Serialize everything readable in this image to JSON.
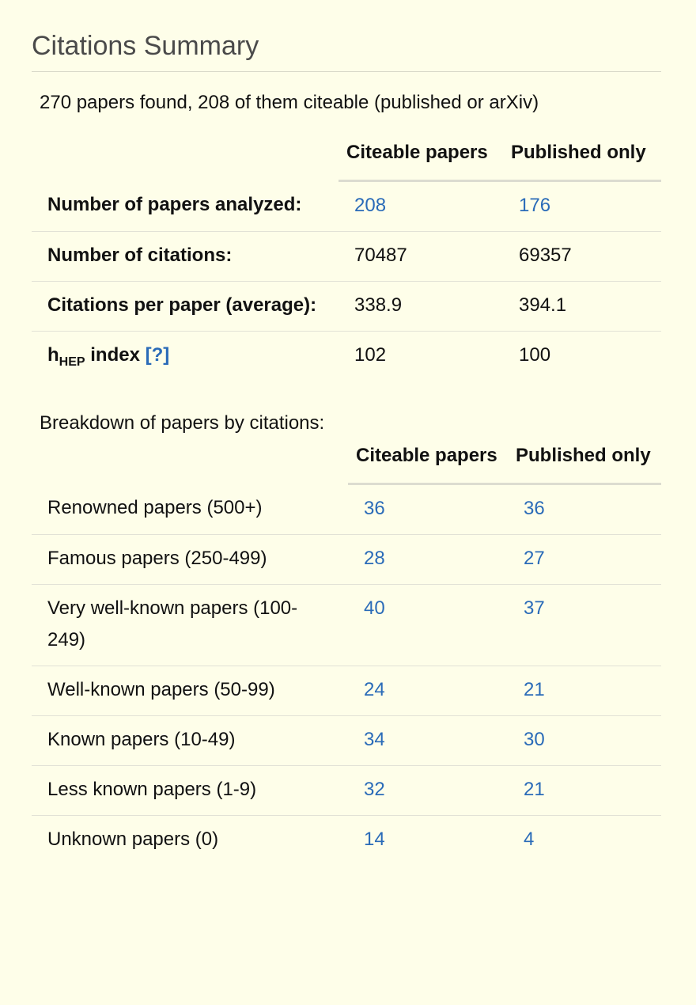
{
  "panel": {
    "title": "Citations Summary",
    "summary": "270 papers found, 208 of them citeable (published or arXiv)"
  },
  "summary_table": {
    "headers": [
      "Citeable papers",
      "Published only"
    ],
    "rows": [
      {
        "label": "Number of papers analyzed:",
        "citeable": "208",
        "published": "176",
        "linked": true
      },
      {
        "label": "Number of citations:",
        "citeable": "70487",
        "published": "69357",
        "linked": false
      },
      {
        "label": "Citations per paper (average):",
        "citeable": "338.9",
        "published": "394.1",
        "linked": false
      }
    ],
    "hindex": {
      "label_main": "h",
      "label_sub": "HEP",
      "label_rest": " index ",
      "help": "[?]",
      "citeable": "102",
      "published": "100"
    }
  },
  "breakdown": {
    "title": "Breakdown of papers by citations:",
    "headers": [
      "Citeable papers",
      "Published only"
    ],
    "rows": [
      {
        "label": "Renowned papers (500+)",
        "citeable": "36",
        "published": "36"
      },
      {
        "label": "Famous papers (250-499)",
        "citeable": "28",
        "published": "27"
      },
      {
        "label": "Very well-known papers (100-249)",
        "citeable": "40",
        "published": "37"
      },
      {
        "label": "Well-known papers (50-99)",
        "citeable": "24",
        "published": "21"
      },
      {
        "label": "Known papers (10-49)",
        "citeable": "34",
        "published": "30"
      },
      {
        "label": "Less known papers (1-9)",
        "citeable": "32",
        "published": "21"
      },
      {
        "label": "Unknown papers (0)",
        "citeable": "14",
        "published": "4"
      }
    ]
  },
  "colors": {
    "background": "#fefee9",
    "link": "#2a6bb8",
    "title": "#4a4a4a"
  }
}
